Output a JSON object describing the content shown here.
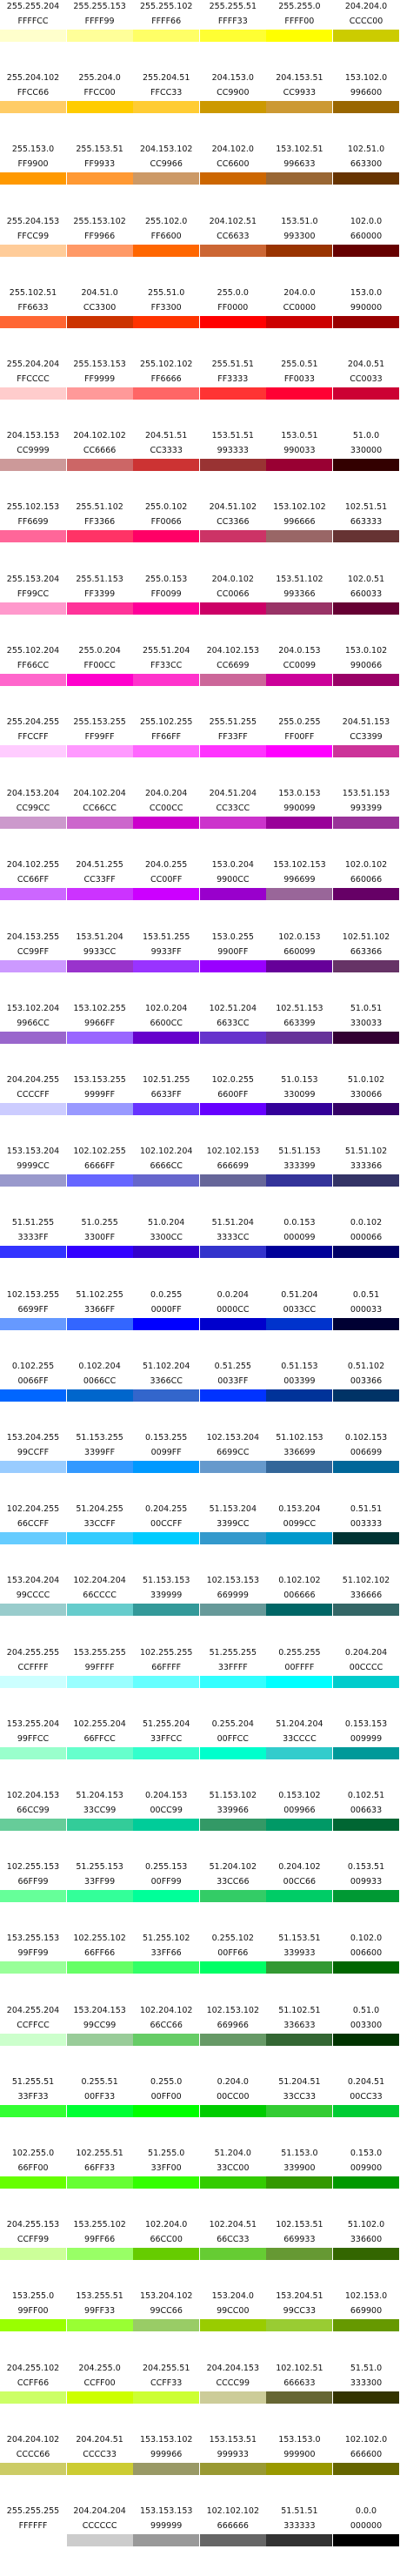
{
  "rows": [
    [
      [
        "255.255.204",
        "FFFFCC"
      ],
      [
        "255.255.153",
        "FFFF99"
      ],
      [
        "255.255.102",
        "FFFF66"
      ],
      [
        "255.255.51",
        "FFFF33"
      ],
      [
        "255.255.0",
        "FFFF00"
      ],
      [
        "204.204.0",
        "CCCC00"
      ]
    ],
    [
      [
        "255.204.102",
        "FFCC66"
      ],
      [
        "255.204.0",
        "FFCC00"
      ],
      [
        "255.204.51",
        "FFCC33"
      ],
      [
        "204.153.0",
        "CC9900"
      ],
      [
        "204.153.51",
        "CC9933"
      ],
      [
        "153.102.0",
        "996600"
      ]
    ],
    [
      [
        "255.153.0",
        "FF9900"
      ],
      [
        "255.153.51",
        "FF9933"
      ],
      [
        "204.153.102",
        "CC9966"
      ],
      [
        "204.102.0",
        "CC6600"
      ],
      [
        "153.102.51",
        "996633"
      ],
      [
        "102.51.0",
        "663300"
      ]
    ],
    [
      [
        "255.204.153",
        "FFCC99"
      ],
      [
        "255.153.102",
        "FF9966"
      ],
      [
        "255.102.0",
        "FF6600"
      ],
      [
        "204.102.51",
        "CC6633"
      ],
      [
        "153.51.0",
        "993300"
      ],
      [
        "102.0.0",
        "660000"
      ]
    ],
    [
      [
        "255.102.51",
        "FF6633"
      ],
      [
        "204.51.0",
        "CC3300"
      ],
      [
        "255.51.0",
        "FF3300"
      ],
      [
        "255.0.0",
        "FF0000"
      ],
      [
        "204.0.0",
        "CC0000"
      ],
      [
        "153.0.0",
        "990000"
      ]
    ],
    [
      [
        "255.204.204",
        "FFCCCC"
      ],
      [
        "255.153.153",
        "FF9999"
      ],
      [
        "255.102.102",
        "FF6666"
      ],
      [
        "255.51.51",
        "FF3333"
      ],
      [
        "255.0.51",
        "FF0033"
      ],
      [
        "204.0.51",
        "CC0033"
      ]
    ],
    [
      [
        "204.153.153",
        "CC9999"
      ],
      [
        "204.102.102",
        "CC6666"
      ],
      [
        "204.51.51",
        "CC3333"
      ],
      [
        "153.51.51",
        "993333"
      ],
      [
        "153.0.51",
        "990033"
      ],
      [
        "51.0.0",
        "330000"
      ]
    ],
    [
      [
        "255.102.153",
        "FF6699"
      ],
      [
        "255.51.102",
        "FF3366"
      ],
      [
        "255.0.102",
        "FF0066"
      ],
      [
        "204.51.102",
        "CC3366"
      ],
      [
        "153.102.102",
        "996666"
      ],
      [
        "102.51.51",
        "663333"
      ]
    ],
    [
      [
        "255.153.204",
        "FF99CC"
      ],
      [
        "255.51.153",
        "FF3399"
      ],
      [
        "255.0.153",
        "FF0099"
      ],
      [
        "204.0.102",
        "CC0066"
      ],
      [
        "153.51.102",
        "993366"
      ],
      [
        "102.0.51",
        "660033"
      ]
    ],
    [
      [
        "255.102.204",
        "FF66CC"
      ],
      [
        "255.0.204",
        "FF00CC"
      ],
      [
        "255.51.204",
        "FF33CC"
      ],
      [
        "204.102.153",
        "CC6699"
      ],
      [
        "204.0.153",
        "CC0099"
      ],
      [
        "153.0.102",
        "990066"
      ]
    ],
    [
      [
        "255.204.255",
        "FFCCFF"
      ],
      [
        "255.153.255",
        "FF99FF"
      ],
      [
        "255.102.255",
        "FF66FF"
      ],
      [
        "255.51.255",
        "FF33FF"
      ],
      [
        "255.0.255",
        "FF00FF"
      ],
      [
        "204.51.153",
        "CC3399"
      ]
    ],
    [
      [
        "204.153.204",
        "CC99CC"
      ],
      [
        "204.102.204",
        "CC66CC"
      ],
      [
        "204.0.204",
        "CC00CC"
      ],
      [
        "204.51.204",
        "CC33CC"
      ],
      [
        "153.0.153",
        "990099"
      ],
      [
        "153.51.153",
        "993399"
      ]
    ],
    [
      [
        "204.102.255",
        "CC66FF"
      ],
      [
        "204.51.255",
        "CC33FF"
      ],
      [
        "204.0.255",
        "CC00FF"
      ],
      [
        "153.0.204",
        "9900CC"
      ],
      [
        "153.102.153",
        "996699"
      ],
      [
        "102.0.102",
        "660066"
      ]
    ],
    [
      [
        "204.153.255",
        "CC99FF"
      ],
      [
        "153.51.204",
        "9933CC"
      ],
      [
        "153.51.255",
        "9933FF"
      ],
      [
        "153.0.255",
        "9900FF"
      ],
      [
        "102.0.153",
        "660099"
      ],
      [
        "102.51.102",
        "663366"
      ]
    ],
    [
      [
        "153.102.204",
        "9966CC"
      ],
      [
        "153.102.255",
        "9966FF"
      ],
      [
        "102.0.204",
        "6600CC"
      ],
      [
        "102.51.204",
        "6633CC"
      ],
      [
        "102.51.153",
        "663399"
      ],
      [
        "51.0.51",
        "330033"
      ]
    ],
    [
      [
        "204.204.255",
        "CCCCFF"
      ],
      [
        "153.153.255",
        "9999FF"
      ],
      [
        "102.51.255",
        "6633FF"
      ],
      [
        "102.0.255",
        "6600FF"
      ],
      [
        "51.0.153",
        "330099"
      ],
      [
        "51.0.102",
        "330066"
      ]
    ],
    [
      [
        "153.153.204",
        "9999CC"
      ],
      [
        "102.102.255",
        "6666FF"
      ],
      [
        "102.102.204",
        "6666CC"
      ],
      [
        "102.102.153",
        "666699"
      ],
      [
        "51.51.153",
        "333399"
      ],
      [
        "51.51.102",
        "333366"
      ]
    ],
    [
      [
        "51.51.255",
        "3333FF"
      ],
      [
        "51.0.255",
        "3300FF"
      ],
      [
        "51.0.204",
        "3300CC"
      ],
      [
        "51.51.204",
        "3333CC"
      ],
      [
        "0.0.153",
        "000099"
      ],
      [
        "0.0.102",
        "000066"
      ]
    ],
    [
      [
        "102.153.255",
        "6699FF"
      ],
      [
        "51.102.255",
        "3366FF"
      ],
      [
        "0.0.255",
        "0000FF"
      ],
      [
        "0.0.204",
        "0000CC"
      ],
      [
        "0.51.204",
        "0033CC"
      ],
      [
        "0.0.51",
        "000033"
      ]
    ],
    [
      [
        "0.102.255",
        "0066FF"
      ],
      [
        "0.102.204",
        "0066CC"
      ],
      [
        "51.102.204",
        "3366CC"
      ],
      [
        "0.51.255",
        "0033FF"
      ],
      [
        "0.51.153",
        "003399"
      ],
      [
        "0.51.102",
        "003366"
      ]
    ],
    [
      [
        "153.204.255",
        "99CCFF"
      ],
      [
        "51.153.255",
        "3399FF"
      ],
      [
        "0.153.255",
        "0099FF"
      ],
      [
        "102.153.204",
        "6699CC"
      ],
      [
        "51.102.153",
        "336699"
      ],
      [
        "0.102.153",
        "006699"
      ]
    ],
    [
      [
        "102.204.255",
        "66CCFF"
      ],
      [
        "51.204.255",
        "33CCFF"
      ],
      [
        "0.204.255",
        "00CCFF"
      ],
      [
        "51.153.204",
        "3399CC"
      ],
      [
        "0.153.204",
        "0099CC"
      ],
      [
        "0.51.51",
        "003333"
      ]
    ],
    [
      [
        "153.204.204",
        "99CCCC"
      ],
      [
        "102.204.204",
        "66CCCC"
      ],
      [
        "51.153.153",
        "339999"
      ],
      [
        "102.153.153",
        "669999"
      ],
      [
        "0.102.102",
        "006666"
      ],
      [
        "51.102.102",
        "336666"
      ]
    ],
    [
      [
        "204.255.255",
        "CCFFFF"
      ],
      [
        "153.255.255",
        "99FFFF"
      ],
      [
        "102.255.255",
        "66FFFF"
      ],
      [
        "51.255.255",
        "33FFFF"
      ],
      [
        "0.255.255",
        "00FFFF"
      ],
      [
        "0.204.204",
        "00CCCC"
      ]
    ],
    [
      [
        "153.255.204",
        "99FFCC"
      ],
      [
        "102.255.204",
        "66FFCC"
      ],
      [
        "51.255.204",
        "33FFCC"
      ],
      [
        "0.255.204",
        "00FFCC"
      ],
      [
        "51.204.204",
        "33CCCC"
      ],
      [
        "0.153.153",
        "009999"
      ]
    ],
    [
      [
        "102.204.153",
        "66CC99"
      ],
      [
        "51.204.153",
        "33CC99"
      ],
      [
        "0.204.153",
        "00CC99"
      ],
      [
        "51.153.102",
        "339966"
      ],
      [
        "0.153.102",
        "009966"
      ],
      [
        "0.102.51",
        "006633"
      ]
    ],
    [
      [
        "102.255.153",
        "66FF99"
      ],
      [
        "51.255.153",
        "33FF99"
      ],
      [
        "0.255.153",
        "00FF99"
      ],
      [
        "51.204.102",
        "33CC66"
      ],
      [
        "0.204.102",
        "00CC66"
      ],
      [
        "0.153.51",
        "009933"
      ]
    ],
    [
      [
        "153.255.153",
        "99FF99"
      ],
      [
        "102.255.102",
        "66FF66"
      ],
      [
        "51.255.102",
        "33FF66"
      ],
      [
        "0.255.102",
        "00FF66"
      ],
      [
        "51.153.51",
        "339933"
      ],
      [
        "0.102.0",
        "006600"
      ]
    ],
    [
      [
        "204.255.204",
        "CCFFCC"
      ],
      [
        "153.204.153",
        "99CC99"
      ],
      [
        "102.204.102",
        "66CC66"
      ],
      [
        "102.153.102",
        "669966"
      ],
      [
        "51.102.51",
        "336633"
      ],
      [
        "0.51.0",
        "003300"
      ]
    ],
    [
      [
        "51.255.51",
        "33FF33"
      ],
      [
        "0.255.51",
        "00FF33"
      ],
      [
        "0.255.0",
        "00FF00"
      ],
      [
        "0.204.0",
        "00CC00"
      ],
      [
        "51.204.51",
        "33CC33"
      ],
      [
        "0.204.51",
        "00CC33"
      ]
    ],
    [
      [
        "102.255.0",
        "66FF00"
      ],
      [
        "102.255.51",
        "66FF33"
      ],
      [
        "51.255.0",
        "33FF00"
      ],
      [
        "51.204.0",
        "33CC00"
      ],
      [
        "51.153.0",
        "339900"
      ],
      [
        "0.153.0",
        "009900"
      ]
    ],
    [
      [
        "204.255.153",
        "CCFF99"
      ],
      [
        "153.255.102",
        "99FF66"
      ],
      [
        "102.204.0",
        "66CC00"
      ],
      [
        "102.204.51",
        "66CC33"
      ],
      [
        "102.153.51",
        "669933"
      ],
      [
        "51.102.0",
        "336600"
      ]
    ],
    [
      [
        "153.255.0",
        "99FF00"
      ],
      [
        "153.255.51",
        "99FF33"
      ],
      [
        "153.204.102",
        "99CC66"
      ],
      [
        "153.204.0",
        "99CC00"
      ],
      [
        "153.204.51",
        "99CC33"
      ],
      [
        "102.153.0",
        "669900"
      ]
    ],
    [
      [
        "204.255.102",
        "CCFF66"
      ],
      [
        "204.255.0",
        "CCFF00"
      ],
      [
        "204.255.51",
        "CCFF33"
      ],
      [
        "204.204.153",
        "CCCC99"
      ],
      [
        "102.102.51",
        "666633"
      ],
      [
        "51.51.0",
        "333300"
      ]
    ],
    [
      [
        "204.204.102",
        "CCCC66"
      ],
      [
        "204.204.51",
        "CCCC33"
      ],
      [
        "153.153.102",
        "999966"
      ],
      [
        "153.153.51",
        "999933"
      ],
      [
        "153.153.0",
        "999900"
      ],
      [
        "102.102.0",
        "666600"
      ]
    ],
    [
      [
        "255.255.255",
        "FFFFFF"
      ],
      [
        "204.204.204",
        "CCCCCC"
      ],
      [
        "153.153.153",
        "999999"
      ],
      [
        "102.102.102",
        "666666"
      ],
      [
        "51.51.51",
        "333333"
      ],
      [
        "0.0.0",
        "000000"
      ]
    ]
  ]
}
